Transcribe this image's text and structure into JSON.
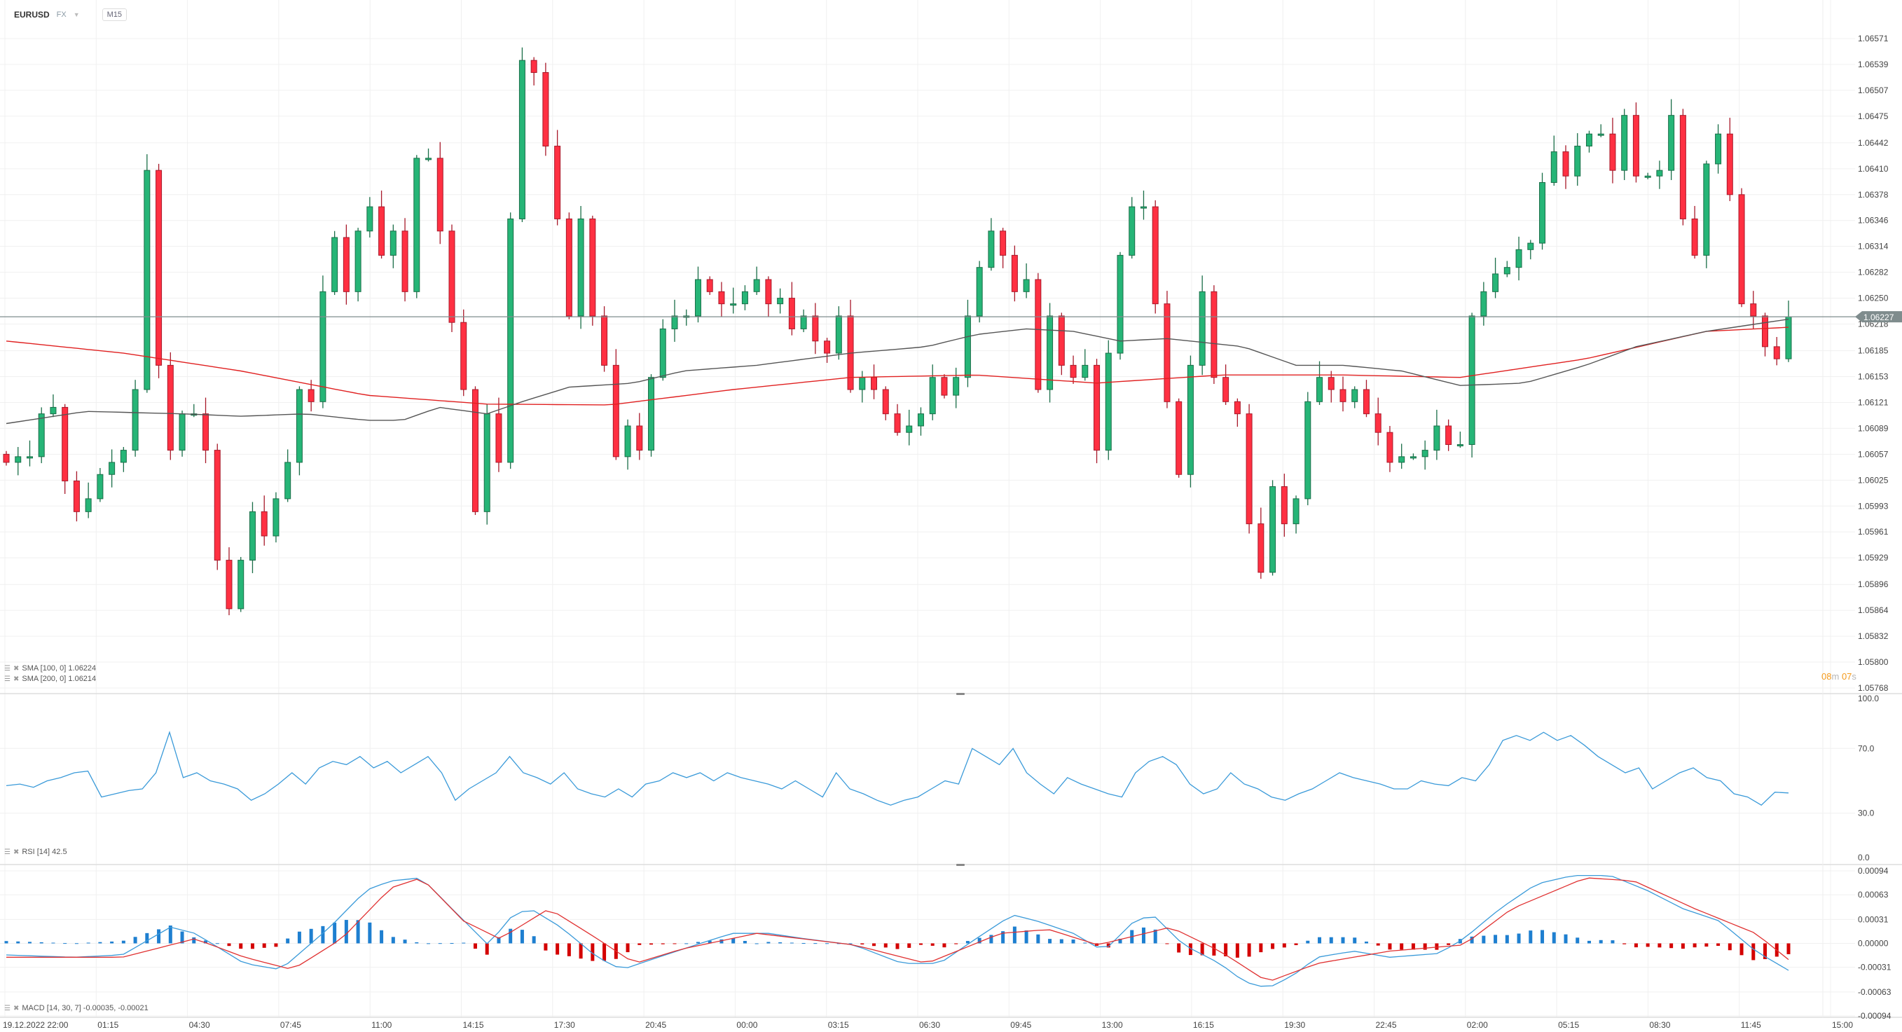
{
  "header": {
    "symbol": "EURUSD",
    "market": "FX",
    "timeframe": "M15"
  },
  "colors": {
    "up": "#26b577",
    "up_border": "#1a6e48",
    "down": "#ff3042",
    "down_border": "#a8192a",
    "sma100": "#555555",
    "sma200": "#e02020",
    "rsi": "#3a9ad9",
    "macd": "#3a9ad9",
    "signal": "#e03030",
    "hist_pos": "#1e7fd0",
    "hist_neg": "#d40000",
    "price_tag": "#7f8c8d",
    "timer": "#f59a1b"
  },
  "legends": {
    "sma100": "SMA [100, 0] 1.06224",
    "sma200": "SMA [200, 0] 1.06214",
    "rsi": "RSI [14] 42.5",
    "macd": "MACD [14, 30, 7] -0.00035, -0.00021"
  },
  "timer": {
    "minutes": "08",
    "m": "m",
    "seconds": "07",
    "s": "s"
  },
  "chart_data": {
    "type": "candlestick",
    "symbol": "EURUSD",
    "interval": "M15",
    "current_price": "1.06227",
    "price_axis": {
      "range": [
        1.05768,
        1.06571
      ],
      "ticks": [
        "1.06571",
        "1.06539",
        "1.06507",
        "1.06475",
        "1.06442",
        "1.06410",
        "1.06378",
        "1.06346",
        "1.06314",
        "1.06282",
        "1.06250",
        "1.06218",
        "1.06185",
        "1.06153",
        "1.06121",
        "1.06089",
        "1.06057",
        "1.06025",
        "1.05993",
        "1.05961",
        "1.05929",
        "1.05896",
        "1.05864",
        "1.05832",
        "1.05800",
        "1.05768"
      ]
    },
    "time_axis": {
      "ticks": [
        "19.12.2022  22:00",
        "01:15",
        "04:30",
        "07:45",
        "11:00",
        "14:15",
        "17:30",
        "20:45",
        "00:00",
        "03:15",
        "06:30",
        "09:45",
        "13:00",
        "16:15",
        "19:30",
        "22:45",
        "02:00",
        "05:15",
        "08:30",
        "11:45",
        "15:00"
      ]
    },
    "closes": [
      1.06047,
      1.06054,
      1.06054,
      1.06107,
      1.06115,
      1.06024,
      1.05986,
      1.06002,
      1.06032,
      1.06047,
      1.06062,
      1.06137,
      1.06408,
      1.06167,
      1.06062,
      1.06107,
      1.06107,
      1.06062,
      1.05926,
      1.05866,
      1.05926,
      1.05986,
      1.05956,
      1.06002,
      1.06047,
      1.06137,
      1.06122,
      1.06258,
      1.06325,
      1.06258,
      1.06333,
      1.06363,
      1.06303,
      1.06333,
      1.06258,
      1.06423,
      1.06423,
      1.06333,
      1.0622,
      1.06137,
      1.05986,
      1.06107,
      1.06047,
      1.06348,
      1.06544,
      1.06529,
      1.06438,
      1.06348,
      1.06228,
      1.06348,
      1.06228,
      1.06167,
      1.06054,
      1.06092,
      1.06062,
      1.06152,
      1.06212,
      1.06228,
      1.06228,
      1.06273,
      1.06258,
      1.06243,
      1.06243,
      1.06258,
      1.06273,
      1.06243,
      1.0625,
      1.06212,
      1.06228,
      1.06197,
      1.06182,
      1.06228,
      1.06137,
      1.06152,
      1.06137,
      1.06107,
      1.06084,
      1.06092,
      1.06107,
      1.06152,
      1.0613,
      1.06152,
      1.06228,
      1.06288,
      1.06333,
      1.06303,
      1.06258,
      1.06273,
      1.06137,
      1.06228,
      1.06167,
      1.06152,
      1.06167,
      1.06062,
      1.06182,
      1.06303,
      1.06363,
      1.06363,
      1.06243,
      1.06122,
      1.06032,
      1.06167,
      1.06258,
      1.06152,
      1.06122,
      1.06107,
      1.05971,
      1.05911,
      1.06017,
      1.05971,
      1.06002,
      1.06122,
      1.06152,
      1.06137,
      1.06122,
      1.06137,
      1.06107,
      1.06084,
      1.06047,
      1.06054,
      1.06054,
      1.06062,
      1.06092,
      1.06069,
      1.06069,
      1.06228,
      1.06258,
      1.0628,
      1.06288,
      1.0631,
      1.06318,
      1.06393,
      1.06431,
      1.06401,
      1.06438,
      1.06453,
      1.06453,
      1.06408,
      1.06476,
      1.06401,
      1.06401,
      1.06408,
      1.06476,
      1.06348,
      1.06303,
      1.06416,
      1.06453,
      1.06378,
      1.06243,
      1.06228,
      1.0619,
      1.06175,
      1.06227
    ],
    "sma100": [
      [
        0,
        1.06095
      ],
      [
        6.8,
        1.0611
      ],
      [
        15,
        1.06107
      ],
      [
        20,
        1.06104
      ],
      [
        25.5,
        1.06107
      ],
      [
        30.7,
        1.06099
      ],
      [
        33.8,
        1.06099
      ],
      [
        36.9,
        1.06115
      ],
      [
        41,
        1.06107
      ],
      [
        44,
        1.06122
      ],
      [
        48,
        1.0614
      ],
      [
        53.5,
        1.06145
      ],
      [
        57.7,
        1.0616
      ],
      [
        64,
        1.06167
      ],
      [
        72,
        1.06182
      ],
      [
        78.5,
        1.0619
      ],
      [
        82.7,
        1.06205
      ],
      [
        87,
        1.06212
      ],
      [
        91,
        1.06209
      ],
      [
        95,
        1.06197
      ],
      [
        99,
        1.062
      ],
      [
        105.5,
        1.0619
      ],
      [
        110,
        1.06167
      ],
      [
        114,
        1.06167
      ],
      [
        119,
        1.0616
      ],
      [
        124,
        1.06142
      ],
      [
        129.5,
        1.06145
      ],
      [
        134.7,
        1.06167
      ],
      [
        139,
        1.0619
      ],
      [
        145,
        1.06209
      ],
      [
        152,
        1.06224
      ]
    ],
    "sma200": [
      [
        0,
        1.06197
      ],
      [
        10,
        1.06182
      ],
      [
        20,
        1.0616
      ],
      [
        30.7,
        1.0613
      ],
      [
        41,
        1.06119
      ],
      [
        51.5,
        1.06118
      ],
      [
        62,
        1.06137
      ],
      [
        72,
        1.06152
      ],
      [
        82.7,
        1.06155
      ],
      [
        93,
        1.06145
      ],
      [
        103.6,
        1.06155
      ],
      [
        114,
        1.06155
      ],
      [
        124,
        1.06152
      ],
      [
        134.7,
        1.06175
      ],
      [
        145,
        1.06209
      ],
      [
        152,
        1.06214
      ]
    ],
    "rsi": {
      "range": [
        0,
        100
      ],
      "ticks": [
        "100.0",
        "70.0",
        "30.0",
        "0.0"
      ],
      "values": [
        47,
        48,
        46,
        50,
        52,
        55,
        56,
        40,
        42,
        44,
        45,
        55,
        80,
        52,
        55,
        50,
        48,
        45,
        38,
        42,
        48,
        55,
        48,
        58,
        62,
        60,
        65,
        58,
        62,
        55,
        60,
        65,
        55,
        38,
        45,
        50,
        55,
        65,
        55,
        52,
        48,
        55,
        45,
        42,
        40,
        45,
        40,
        48,
        50,
        55,
        52,
        55,
        50,
        55,
        52,
        50,
        48,
        45,
        50,
        45,
        40,
        55,
        45,
        42,
        38,
        35,
        38,
        40,
        45,
        50,
        48,
        70,
        65,
        60,
        70,
        55,
        48,
        42,
        52,
        48,
        45,
        42,
        40,
        55,
        62,
        65,
        60,
        48,
        42,
        45,
        55,
        48,
        45,
        40,
        38,
        42,
        45,
        50,
        55,
        52,
        50,
        48,
        45,
        45,
        50,
        48,
        47,
        52,
        50,
        60,
        75,
        78,
        75,
        80,
        75,
        78,
        72,
        65,
        60,
        55,
        58,
        45,
        50,
        55,
        58,
        52,
        50,
        42,
        40,
        35,
        43,
        42.5
      ]
    },
    "macd": {
      "range": [
        -0.00094,
        0.00094
      ],
      "ticks": [
        "0.00094",
        "0.00063",
        "0.00031",
        "0.00000",
        "-0.00031",
        "-0.00063",
        "-0.00094"
      ],
      "macd": [
        [
          0,
          -0.00015
        ],
        [
          5.7,
          -0.00018
        ],
        [
          9.9,
          -0.00015
        ],
        [
          14,
          0.00021
        ],
        [
          16.1,
          0.00013
        ],
        [
          20.3,
          -0.00026
        ],
        [
          23.4,
          -0.00034
        ],
        [
          27.6,
          0.00021
        ],
        [
          30.7,
          0.00069
        ],
        [
          32.8,
          0.00081
        ],
        [
          35.4,
          0.00085
        ],
        [
          38,
          0.00045
        ],
        [
          41.1,
          -2e-05
        ],
        [
          43.2,
          0.00037
        ],
        [
          44.7,
          0.00045
        ],
        [
          47.3,
          0.00021
        ],
        [
          50.4,
          -0.00018
        ],
        [
          52.5,
          -0.00034
        ],
        [
          55.6,
          -0.00018
        ],
        [
          58.8,
          -2e-05
        ],
        [
          61.9,
          0.00013
        ],
        [
          65,
          0.00013
        ],
        [
          68.1,
          6e-05
        ],
        [
          72.3,
          -2e-05
        ],
        [
          76.4,
          -0.00026
        ],
        [
          79.6,
          -0.00026
        ],
        [
          82.7,
          6e-05
        ],
        [
          85.8,
          0.00037
        ],
        [
          87.9,
          0.00029
        ],
        [
          91,
          0.00013
        ],
        [
          93.6,
          -0.0001
        ],
        [
          96.2,
          0.00029
        ],
        [
          97.8,
          0.00037
        ],
        [
          100.4,
          -2e-05
        ],
        [
          103.5,
          -0.00026
        ],
        [
          105.6,
          -0.0005
        ],
        [
          107.6,
          -0.00058
        ],
        [
          109.7,
          -0.00042
        ],
        [
          111.8,
          -0.00018
        ],
        [
          114.9,
          -0.0001
        ],
        [
          118,
          -0.00018
        ],
        [
          122.2,
          -0.00013
        ],
        [
          124.3,
          6e-05
        ],
        [
          127.4,
          0.00045
        ],
        [
          130.5,
          0.00077
        ],
        [
          133.6,
          0.00088
        ],
        [
          136.8,
          0.00088
        ],
        [
          139.9,
          0.00069
        ],
        [
          143,
          0.00045
        ],
        [
          146.1,
          0.00029
        ],
        [
          149.2,
          -0.0001
        ],
        [
          152,
          -0.00035
        ]
      ],
      "signal": [
        [
          0,
          -0.00018
        ],
        [
          9.9,
          -0.00018
        ],
        [
          16.1,
          6e-05
        ],
        [
          20.3,
          -0.00018
        ],
        [
          24.4,
          -0.00034
        ],
        [
          28.6,
          6e-05
        ],
        [
          32.8,
          0.00072
        ],
        [
          35.4,
          0.00085
        ],
        [
          39,
          0.00029
        ],
        [
          42.1,
          6e-05
        ],
        [
          46.3,
          0.00045
        ],
        [
          50.4,
          6e-05
        ],
        [
          53.6,
          -0.00026
        ],
        [
          57.7,
          -7e-05
        ],
        [
          64,
          0.00013
        ],
        [
          72.3,
          -2e-05
        ],
        [
          78.5,
          -0.00026
        ],
        [
          84.8,
          0.00013
        ],
        [
          88.9,
          0.00018
        ],
        [
          93.1,
          -2e-05
        ],
        [
          99.3,
          0.00021
        ],
        [
          103.5,
          -0.0001
        ],
        [
          107.6,
          -0.0005
        ],
        [
          111.8,
          -0.00026
        ],
        [
          118,
          -0.0001
        ],
        [
          124.3,
          -2e-05
        ],
        [
          128.4,
          0.00045
        ],
        [
          134.7,
          0.00085
        ],
        [
          138.8,
          0.00081
        ],
        [
          144,
          0.00045
        ],
        [
          149.2,
          0.00013
        ],
        [
          152,
          -0.00021
        ]
      ]
    }
  }
}
